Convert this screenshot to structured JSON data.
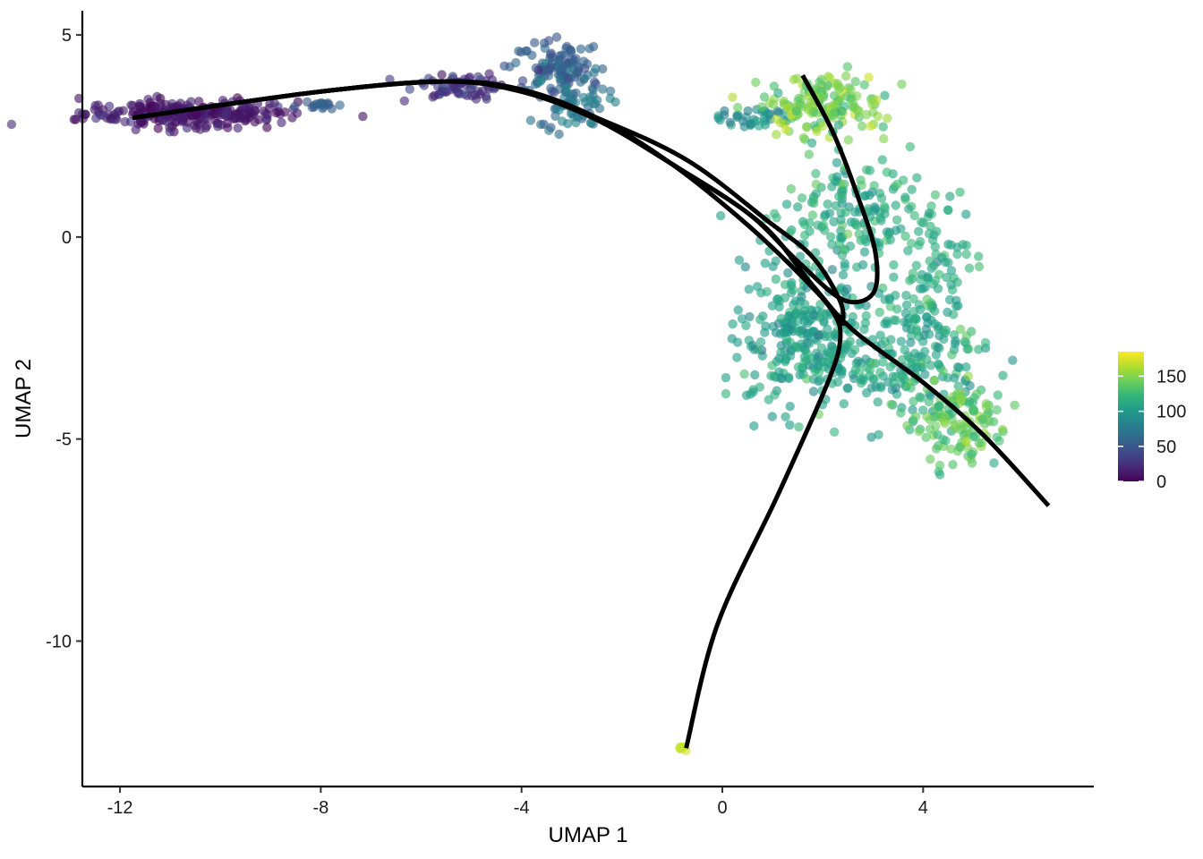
{
  "chart_data": {
    "type": "scatter",
    "title": "",
    "xlabel": "UMAP 1",
    "ylabel": "UMAP 2",
    "xlim": [
      -12.75,
      7.4
    ],
    "ylim": [
      -13.6,
      5.6
    ],
    "x_ticks": [
      -12,
      -8,
      -4,
      0,
      4
    ],
    "x_tick_labels": [
      "-12",
      "-8",
      "-4",
      "0",
      "4"
    ],
    "y_ticks": [
      5,
      0,
      -5,
      -10
    ],
    "y_tick_labels": [
      "5",
      "0",
      "-5",
      "-10"
    ],
    "grid": false,
    "colorbar": {
      "min": 0,
      "max": 185,
      "ticks": [
        0,
        50,
        100,
        150
      ],
      "tick_labels": [
        "0",
        "50",
        "100",
        "150"
      ],
      "colormap": [
        "#440154",
        "#482878",
        "#3e4a89",
        "#31688e",
        "#26828e",
        "#1f9e89",
        "#35b779",
        "#6ece58",
        "#b5de2b",
        "#fde725"
      ],
      "placement": "right"
    },
    "point_color_mode": "continuous",
    "clusters": [
      {
        "cx": -10.6,
        "cy": 3.05,
        "sx": 1.05,
        "sy": 0.17,
        "n": 260,
        "v": 12,
        "vspread": 8
      },
      {
        "cx": -8.15,
        "cy": 3.25,
        "sx": 0.25,
        "sy": 0.05,
        "n": 18,
        "v": 55,
        "vspread": 5
      },
      {
        "cx": -5.2,
        "cy": 3.75,
        "sx": 0.5,
        "sy": 0.15,
        "n": 70,
        "v": 30,
        "vspread": 8
      },
      {
        "cx": -3.3,
        "cy": 4.2,
        "sx": 0.45,
        "sy": 0.35,
        "n": 110,
        "v": 55,
        "vspread": 10
      },
      {
        "cx": -2.95,
        "cy": 3.3,
        "sx": 0.35,
        "sy": 0.35,
        "n": 60,
        "v": 70,
        "vspread": 10
      },
      {
        "cx": 0.6,
        "cy": 2.95,
        "sx": 0.35,
        "sy": 0.12,
        "n": 35,
        "v": 90,
        "vspread": 10
      },
      {
        "cx": 2.0,
        "cy": 3.3,
        "sx": 0.6,
        "sy": 0.4,
        "n": 160,
        "v": 145,
        "vspread": 12
      },
      {
        "cx": 2.6,
        "cy": 0.4,
        "sx": 0.7,
        "sy": 0.8,
        "n": 170,
        "v": 112,
        "vspread": 12
      },
      {
        "cx": 4.2,
        "cy": -0.8,
        "sx": 0.35,
        "sy": 1.0,
        "n": 90,
        "v": 115,
        "vspread": 10
      },
      {
        "cx": 1.6,
        "cy": -2.5,
        "sx": 0.6,
        "sy": 0.9,
        "n": 260,
        "v": 105,
        "vspread": 10
      },
      {
        "cx": 3.6,
        "cy": -3.0,
        "sx": 0.8,
        "sy": 0.7,
        "n": 190,
        "v": 108,
        "vspread": 10
      },
      {
        "cx": 4.7,
        "cy": -4.6,
        "sx": 0.45,
        "sy": 0.6,
        "n": 130,
        "v": 135,
        "vspread": 12
      },
      {
        "cx": -0.82,
        "cy": -12.65,
        "sx": 0.04,
        "sy": 0.03,
        "n": 6,
        "v": 168,
        "vspread": 2
      }
    ],
    "lineages": [
      {
        "name": "",
        "points": [
          [
            -11.75,
            2.95
          ],
          [
            -8,
            3.6
          ],
          [
            -5.5,
            3.85
          ],
          [
            -4,
            3.65
          ],
          [
            -2.5,
            2.95
          ],
          [
            -1,
            1.8
          ],
          [
            0.5,
            0.3
          ],
          [
            1.6,
            -1.0
          ],
          [
            2.2,
            -1.85
          ],
          [
            2.35,
            -2.5
          ],
          [
            2.1,
            -3.6
          ],
          [
            1.1,
            -6.4
          ],
          [
            -0.1,
            -9.6
          ],
          [
            -0.72,
            -12.65
          ]
        ]
      },
      {
        "name": "",
        "points": [
          [
            -11.75,
            2.95
          ],
          [
            -8,
            3.6
          ],
          [
            -5.5,
            3.85
          ],
          [
            -4,
            3.6
          ],
          [
            -2.5,
            2.9
          ],
          [
            -1,
            1.8
          ],
          [
            0.5,
            0.6
          ],
          [
            1.5,
            -0.6
          ],
          [
            2.4,
            -1.55
          ],
          [
            3.0,
            -1.4
          ],
          [
            3.05,
            -0.4
          ],
          [
            2.7,
            1.0
          ],
          [
            2.2,
            2.6
          ],
          [
            1.6,
            4.0
          ]
        ]
      },
      {
        "name": "",
        "points": [
          [
            -11.75,
            2.95
          ],
          [
            -8,
            3.6
          ],
          [
            -5.5,
            3.85
          ],
          [
            -4,
            3.6
          ],
          [
            -2.5,
            2.9
          ],
          [
            -0.8,
            1.65
          ],
          [
            0.8,
            0.3
          ],
          [
            1.8,
            -1.2
          ],
          [
            2.6,
            -2.3
          ],
          [
            4.0,
            -3.6
          ],
          [
            5.2,
            -4.9
          ],
          [
            6.5,
            -6.65
          ]
        ]
      },
      {
        "name": "",
        "points": [
          [
            -11.75,
            2.95
          ],
          [
            -8,
            3.6
          ],
          [
            -5.5,
            3.85
          ],
          [
            -4,
            3.6
          ],
          [
            -2.5,
            2.95
          ],
          [
            -0.7,
            1.9
          ],
          [
            0.9,
            0.4
          ],
          [
            1.8,
            -0.5
          ],
          [
            2.35,
            -1.6
          ],
          [
            2.4,
            -2.2
          ]
        ]
      }
    ]
  }
}
